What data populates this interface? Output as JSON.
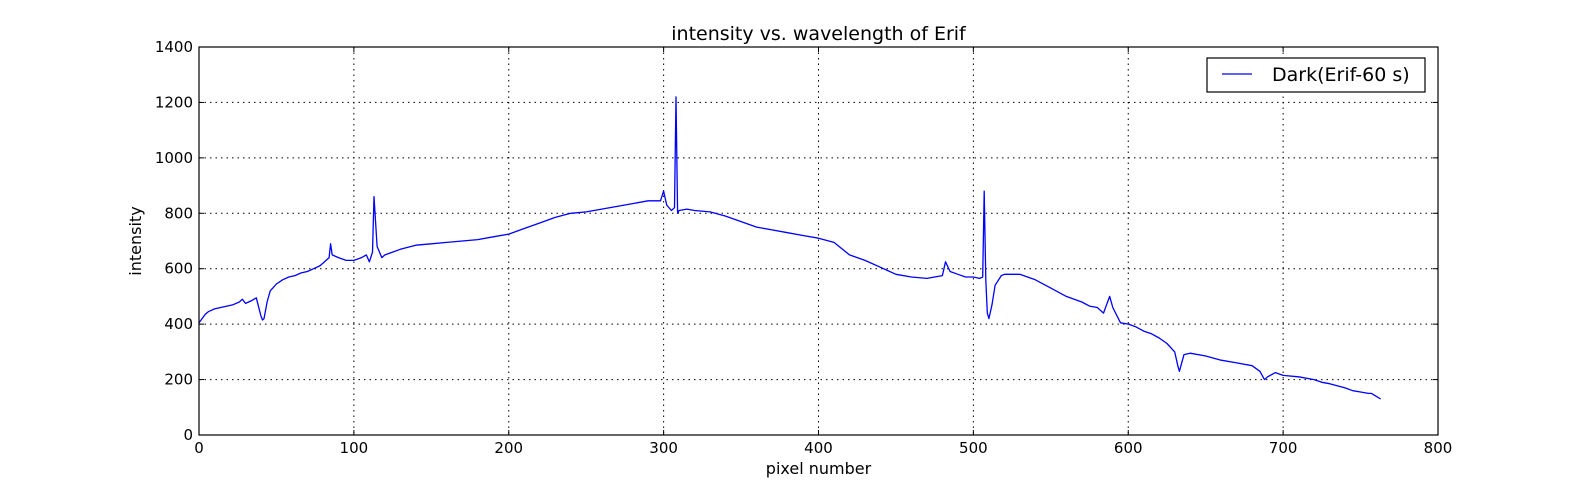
{
  "chart_data": {
    "type": "line",
    "title": "intensity vs. wavelength of Erif",
    "xlabel": "pixel number",
    "ylabel": "intensity",
    "xlim": [
      0,
      800
    ],
    "ylim": [
      0,
      1400
    ],
    "xticks": [
      0,
      100,
      200,
      300,
      400,
      500,
      600,
      700,
      800
    ],
    "yticks": [
      0,
      200,
      400,
      600,
      800,
      1000,
      1200,
      1400
    ],
    "grid": true,
    "legend_position": "top-right",
    "colors": {
      "series": "#0000ff"
    },
    "series": [
      {
        "name": "Dark(Erif-60 s)",
        "x": [
          0,
          2,
          4,
          6,
          8,
          10,
          14,
          18,
          22,
          26,
          28,
          30,
          34,
          37,
          40,
          41,
          42,
          44,
          46,
          50,
          54,
          58,
          62,
          66,
          70,
          74,
          78,
          80,
          84,
          85,
          86,
          90,
          95,
          100,
          105,
          108,
          110,
          112,
          113,
          115,
          118,
          120,
          125,
          130,
          140,
          150,
          160,
          170,
          180,
          190,
          200,
          210,
          220,
          230,
          240,
          250,
          260,
          270,
          280,
          290,
          298,
          300,
          302,
          305,
          307,
          308,
          309,
          310,
          315,
          320,
          330,
          340,
          350,
          360,
          370,
          380,
          390,
          400,
          410,
          420,
          430,
          440,
          450,
          460,
          470,
          480,
          482,
          485,
          490,
          495,
          500,
          504,
          506,
          507,
          508,
          509,
          510,
          512,
          514,
          518,
          520,
          525,
          530,
          540,
          550,
          560,
          570,
          575,
          580,
          582,
          584,
          586,
          588,
          590,
          595,
          600,
          605,
          610,
          615,
          620,
          625,
          630,
          632,
          633,
          636,
          640,
          650,
          660,
          670,
          680,
          685,
          688,
          690,
          695,
          700,
          710,
          720,
          725,
          730,
          740,
          745,
          750,
          755,
          757,
          760,
          763
        ],
        "values": [
          405,
          420,
          435,
          445,
          450,
          455,
          460,
          465,
          470,
          480,
          490,
          475,
          485,
          495,
          430,
          415,
          420,
          480,
          520,
          545,
          560,
          570,
          575,
          585,
          590,
          600,
          610,
          620,
          640,
          690,
          650,
          640,
          630,
          630,
          640,
          650,
          625,
          660,
          860,
          680,
          640,
          650,
          660,
          670,
          685,
          690,
          695,
          700,
          705,
          715,
          725,
          745,
          765,
          785,
          800,
          805,
          815,
          825,
          835,
          845,
          845,
          880,
          830,
          810,
          820,
          1220,
          800,
          810,
          815,
          810,
          805,
          790,
          770,
          750,
          740,
          730,
          720,
          710,
          695,
          650,
          630,
          605,
          580,
          570,
          565,
          575,
          625,
          590,
          580,
          570,
          570,
          565,
          570,
          880,
          560,
          440,
          420,
          470,
          540,
          575,
          580,
          580,
          580,
          560,
          530,
          500,
          480,
          465,
          460,
          450,
          440,
          470,
          500,
          460,
          405,
          400,
          390,
          375,
          365,
          350,
          330,
          300,
          250,
          230,
          290,
          295,
          285,
          270,
          260,
          250,
          230,
          200,
          210,
          225,
          215,
          210,
          200,
          190,
          185,
          170,
          160,
          155,
          150,
          150,
          140,
          130
        ]
      }
    ]
  }
}
